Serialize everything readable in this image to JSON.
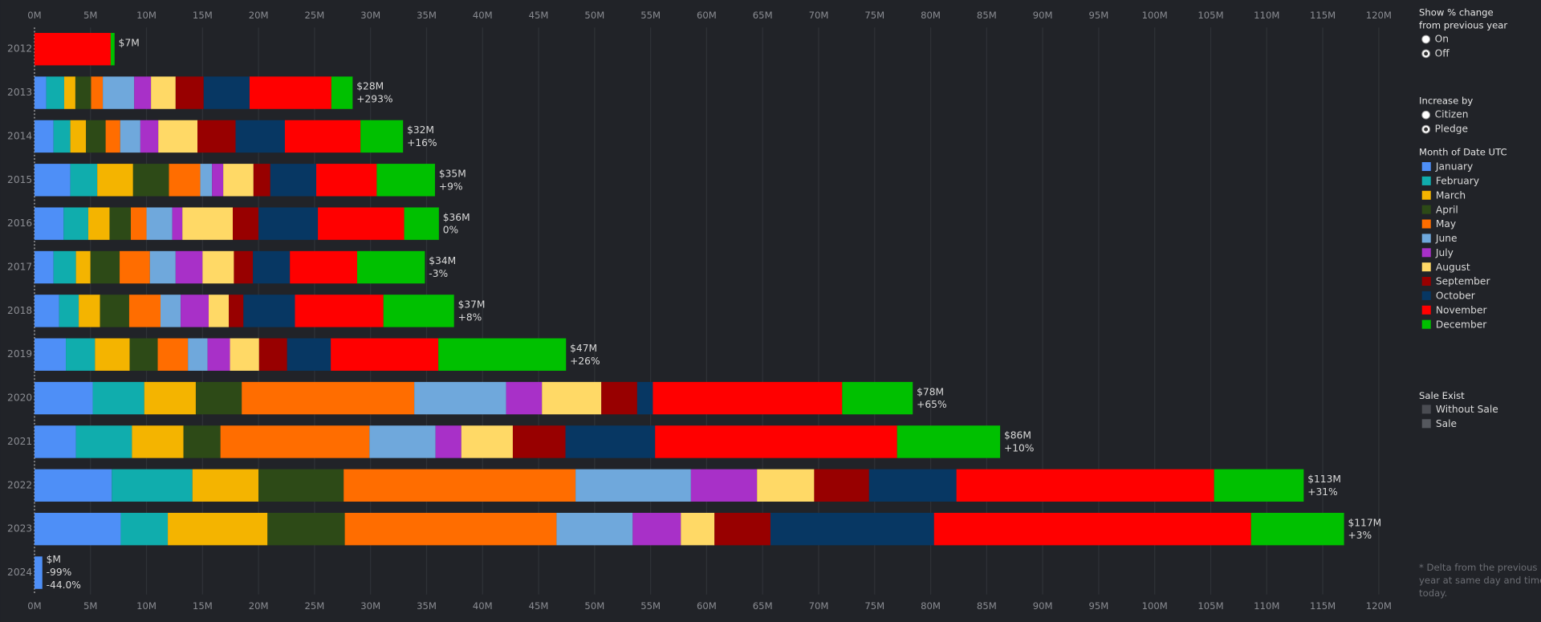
{
  "chart_data": {
    "type": "bar",
    "orientation": "horizontal",
    "stacked": true,
    "categories": [
      "2012",
      "2013",
      "2014",
      "2015",
      "2016",
      "2017",
      "2018",
      "2019",
      "2020",
      "2021",
      "2022",
      "2023",
      "2024"
    ],
    "series": [
      {
        "name": "January",
        "color": "#4e8ff7",
        "values": [
          0,
          1.05,
          1.7,
          3.2,
          2.6,
          1.7,
          2.2,
          2.8,
          5.2,
          3.7,
          6.9,
          7.7,
          0.7
        ]
      },
      {
        "name": "February",
        "color": "#10adad",
        "values": [
          0,
          1.6,
          1.5,
          2.4,
          2.2,
          2.0,
          1.75,
          2.6,
          4.6,
          5.0,
          7.2,
          4.2,
          0
        ]
      },
      {
        "name": "March",
        "color": "#f4b400",
        "values": [
          0,
          1.0,
          1.4,
          3.2,
          1.9,
          1.3,
          1.9,
          3.1,
          4.6,
          4.6,
          5.9,
          8.9,
          0
        ]
      },
      {
        "name": "April",
        "color": "#2d4a17",
        "values": [
          0,
          1.4,
          1.75,
          3.2,
          1.9,
          2.6,
          2.6,
          2.5,
          4.1,
          3.3,
          7.6,
          6.9,
          0
        ]
      },
      {
        "name": "May",
        "color": "#ff6d00",
        "values": [
          0,
          1.05,
          1.3,
          2.8,
          1.4,
          2.7,
          2.8,
          2.7,
          15.4,
          13.3,
          20.7,
          18.9,
          0
        ]
      },
      {
        "name": "June",
        "color": "#6fa8dc",
        "values": [
          0,
          2.8,
          1.8,
          1.05,
          2.3,
          2.3,
          1.8,
          1.75,
          8.2,
          5.9,
          10.3,
          6.8,
          0
        ]
      },
      {
        "name": "July",
        "color": "#a830c8",
        "values": [
          0,
          1.5,
          1.6,
          1.0,
          0.9,
          2.4,
          2.5,
          2.0,
          3.2,
          2.3,
          5.9,
          4.3,
          0
        ]
      },
      {
        "name": "August",
        "color": "#ffd966",
        "values": [
          0,
          2.2,
          3.5,
          2.7,
          4.5,
          2.8,
          1.8,
          2.6,
          5.3,
          4.6,
          5.1,
          3.0,
          0
        ]
      },
      {
        "name": "September",
        "color": "#980000",
        "values": [
          0,
          2.5,
          3.4,
          1.5,
          2.3,
          1.7,
          1.3,
          2.5,
          3.2,
          4.7,
          4.9,
          5.0,
          0
        ]
      },
      {
        "name": "October",
        "color": "#073763",
        "values": [
          0,
          4.1,
          4.4,
          4.1,
          5.3,
          3.3,
          4.6,
          3.9,
          1.4,
          8.0,
          7.8,
          14.6,
          0
        ]
      },
      {
        "name": "November",
        "color": "#ff0000",
        "values": [
          6.8,
          7.3,
          6.75,
          5.4,
          7.7,
          6.0,
          7.9,
          9.6,
          16.9,
          21.6,
          23.0,
          28.3,
          0
        ]
      },
      {
        "name": "December",
        "color": "#00c000",
        "values": [
          0.35,
          1.9,
          3.8,
          5.2,
          3.1,
          6.05,
          6.3,
          11.4,
          6.3,
          9.2,
          8.0,
          8.3,
          0
        ]
      }
    ],
    "annotations": [
      [
        "$7M"
      ],
      [
        "$28M",
        "+293%"
      ],
      [
        "$32M",
        "+16%"
      ],
      [
        "$35M",
        "+9%"
      ],
      [
        "$36M",
        "0%"
      ],
      [
        "$34M",
        "-3%"
      ],
      [
        "$37M",
        "+8%"
      ],
      [
        "$47M",
        "+26%"
      ],
      [
        "$78M",
        "+65%"
      ],
      [
        "$86M",
        "+10%"
      ],
      [
        "$113M",
        "+31%"
      ],
      [
        "$117M",
        "+3%"
      ],
      [
        "$M",
        "-99%",
        "-44.0%"
      ]
    ],
    "xlim": [
      0,
      120
    ],
    "xticks": [
      {
        "value": 0,
        "label": "0M"
      },
      {
        "value": 5,
        "label": "5M"
      },
      {
        "value": 10,
        "label": "10M"
      },
      {
        "value": 15,
        "label": "15M"
      },
      {
        "value": 20,
        "label": "20M"
      },
      {
        "value": 25,
        "label": "25M"
      },
      {
        "value": 30,
        "label": "30M"
      },
      {
        "value": 35,
        "label": "35M"
      },
      {
        "value": 40,
        "label": "40M"
      },
      {
        "value": 45,
        "label": "45M"
      },
      {
        "value": 50,
        "label": "50M"
      },
      {
        "value": 55,
        "label": "55M"
      },
      {
        "value": 60,
        "label": "60M"
      },
      {
        "value": 65,
        "label": "65M"
      },
      {
        "value": 70,
        "label": "70M"
      },
      {
        "value": 75,
        "label": "75M"
      },
      {
        "value": 80,
        "label": "80M"
      },
      {
        "value": 85,
        "label": "85M"
      },
      {
        "value": 90,
        "label": "90M"
      },
      {
        "value": 95,
        "label": "95M"
      },
      {
        "value": 100,
        "label": "100M"
      },
      {
        "value": 105,
        "label": "105M"
      },
      {
        "value": 110,
        "label": "110M"
      },
      {
        "value": 115,
        "label": "115M"
      },
      {
        "value": 120,
        "label": "120M"
      }
    ],
    "grid": true,
    "legend_title": "Month of Date UTC"
  },
  "controls": {
    "show_change": {
      "title": [
        "Show % change",
        "from previous year"
      ],
      "options": [
        "On",
        "Off"
      ],
      "selected": "Off"
    },
    "increase_by": {
      "title": [
        "Increase by"
      ],
      "options": [
        "Citizen",
        "Pledge"
      ],
      "selected": "Pledge"
    }
  },
  "sale_legend": {
    "title": "Sale Exist",
    "items": [
      {
        "name": "Without Sale",
        "color": "#4a4c52"
      },
      {
        "name": "Sale",
        "color": "#55585e"
      }
    ]
  },
  "footnote": [
    "* Delta from the previous",
    "year at same day and time to",
    "today."
  ]
}
